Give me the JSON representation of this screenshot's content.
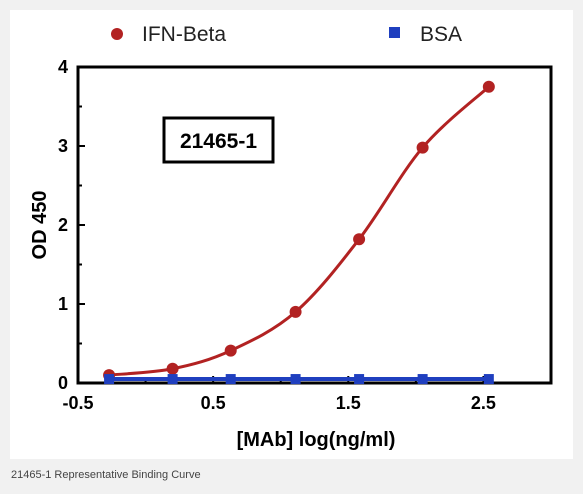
{
  "caption": "21465-1 Representative Binding Curve",
  "chart_data": {
    "type": "line",
    "xlabel": "[MAb] log(ng/ml)",
    "ylabel": "OD 450",
    "annotation": "21465-1",
    "xlim": [
      -0.5,
      3.0
    ],
    "ylim": [
      0,
      4
    ],
    "x_ticks": [
      "-0.5",
      "0.5",
      "1.5",
      "2.5"
    ],
    "x_tick_values": [
      -0.5,
      0.5,
      1.5,
      2.5
    ],
    "y_ticks": [
      "0",
      "1",
      "2",
      "3",
      "4"
    ],
    "y_tick_values": [
      0,
      1,
      2,
      3,
      4
    ],
    "grid": false,
    "legend_position": "top",
    "series": [
      {
        "name": "IFN-Beta",
        "marker": "circle",
        "color": "#b22222",
        "x": [
          -0.27,
          0.2,
          0.63,
          1.11,
          1.58,
          2.05,
          2.54
        ],
        "y": [
          0.1,
          0.18,
          0.41,
          0.9,
          1.82,
          2.98,
          3.75
        ]
      },
      {
        "name": "BSA",
        "marker": "square",
        "color": "#1f3fbf",
        "x": [
          -0.27,
          0.2,
          0.63,
          1.11,
          1.58,
          2.05,
          2.54
        ],
        "y": [
          0.05,
          0.05,
          0.05,
          0.05,
          0.05,
          0.05,
          0.05
        ]
      }
    ]
  }
}
